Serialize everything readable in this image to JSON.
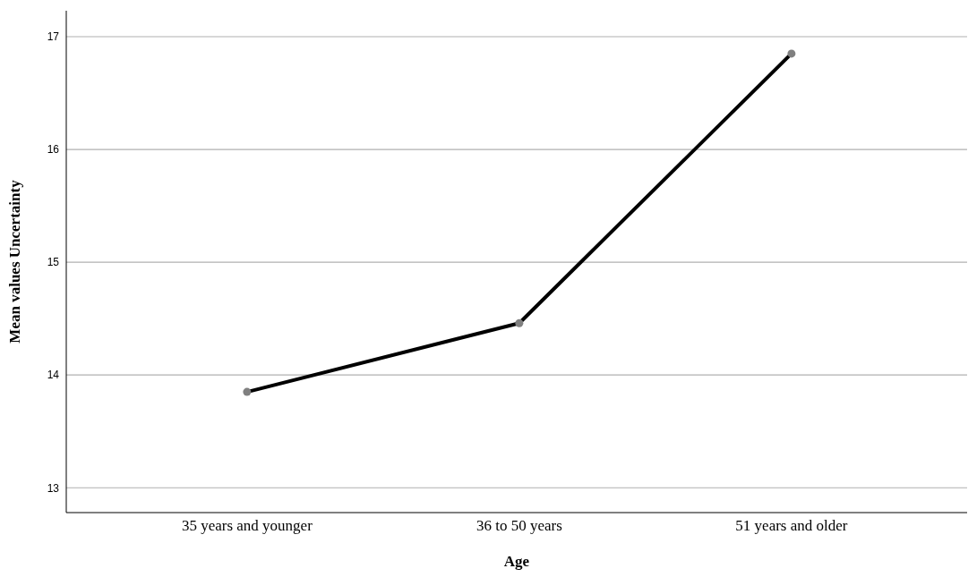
{
  "chart_data": {
    "type": "line",
    "xlabel": "Age",
    "ylabel": "Mean values Uncertainty",
    "categories": [
      "35 years and younger",
      "36 to 50 years",
      "51 years and older"
    ],
    "series": [
      {
        "color": "#000000",
        "values": [
          13.85,
          14.46,
          16.85
        ]
      }
    ],
    "marker": "circle",
    "ylim": [
      12.78,
      17.23
    ],
    "yticks": [
      13,
      14,
      15,
      16,
      17
    ],
    "grid": "y"
  }
}
